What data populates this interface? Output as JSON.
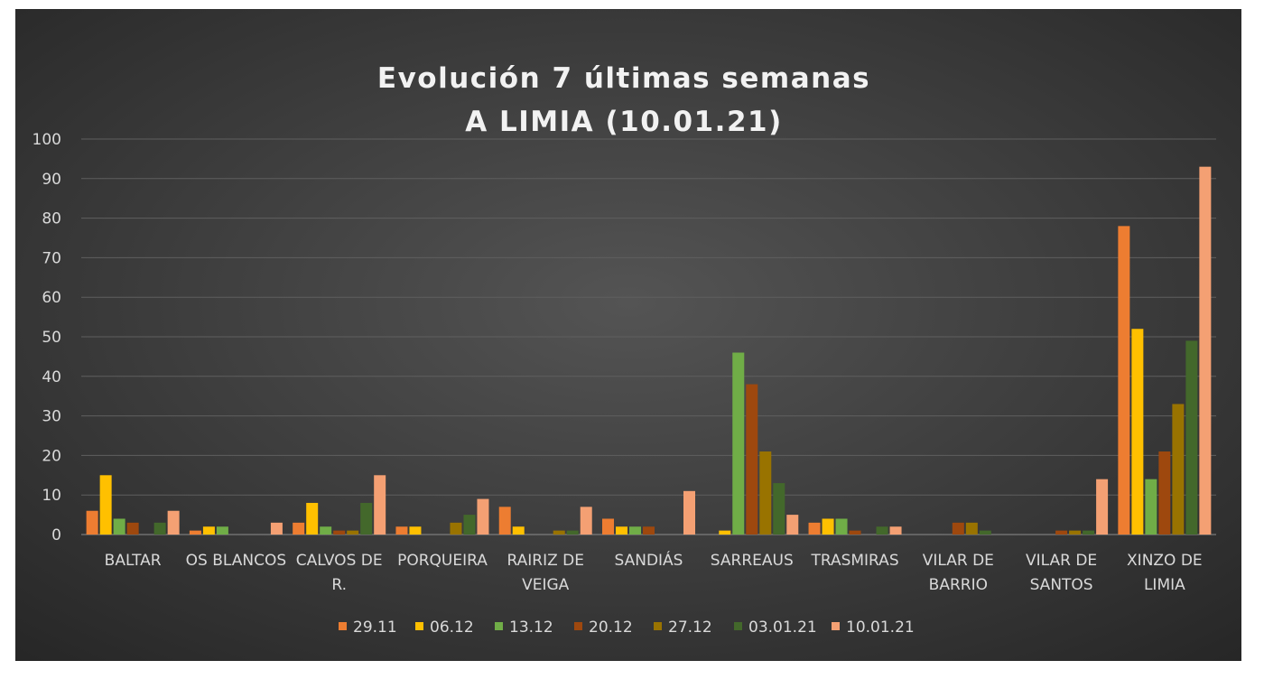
{
  "chart_data": {
    "type": "bar",
    "title_line1": "Evolución 7 últimas semanas",
    "title_line2": "A LIMIA (10.01.21)",
    "ylim": [
      0,
      100
    ],
    "yticks": [
      0,
      10,
      20,
      30,
      40,
      50,
      60,
      70,
      80,
      90,
      100
    ],
    "grid": true,
    "legend_position": "bottom",
    "categories": [
      [
        "BALTAR"
      ],
      [
        "OS BLANCOS"
      ],
      [
        "CALVOS DE",
        "R."
      ],
      [
        "PORQUEIRA"
      ],
      [
        "RAIRIZ DE",
        "VEIGA"
      ],
      [
        "SANDIÁS"
      ],
      [
        "SARREAUS"
      ],
      [
        "TRASMIRAS"
      ],
      [
        "VILAR DE",
        "BARRIO"
      ],
      [
        "VILAR DE",
        "SANTOS"
      ],
      [
        "XINZO DE",
        "LIMIA"
      ]
    ],
    "series": [
      {
        "name": "29.11",
        "color": "#ed7d31",
        "values": [
          6,
          1,
          3,
          2,
          7,
          4,
          0,
          3,
          0,
          0,
          78
        ]
      },
      {
        "name": "06.12",
        "color": "#ffc000",
        "values": [
          15,
          2,
          8,
          2,
          2,
          2,
          1,
          4,
          0,
          0,
          52
        ]
      },
      {
        "name": "13.12",
        "color": "#70ad47",
        "values": [
          4,
          2,
          2,
          0,
          0,
          2,
          46,
          4,
          0,
          0,
          14
        ]
      },
      {
        "name": "20.12",
        "color": "#9e480e",
        "values": [
          3,
          0,
          1,
          0,
          0,
          2,
          38,
          1,
          3,
          1,
          21
        ]
      },
      {
        "name": "27.12",
        "color": "#997300",
        "values": [
          0,
          0,
          1,
          3,
          1,
          0,
          21,
          0,
          3,
          1,
          33
        ]
      },
      {
        "name": "03.01.21",
        "color": "#43682b",
        "values": [
          3,
          0,
          8,
          5,
          1,
          0,
          13,
          2,
          1,
          1,
          49
        ]
      },
      {
        "name": "10.01.21",
        "color": "#f4a073",
        "values": [
          6,
          3,
          15,
          9,
          7,
          11,
          5,
          2,
          0,
          14,
          93
        ]
      }
    ]
  }
}
